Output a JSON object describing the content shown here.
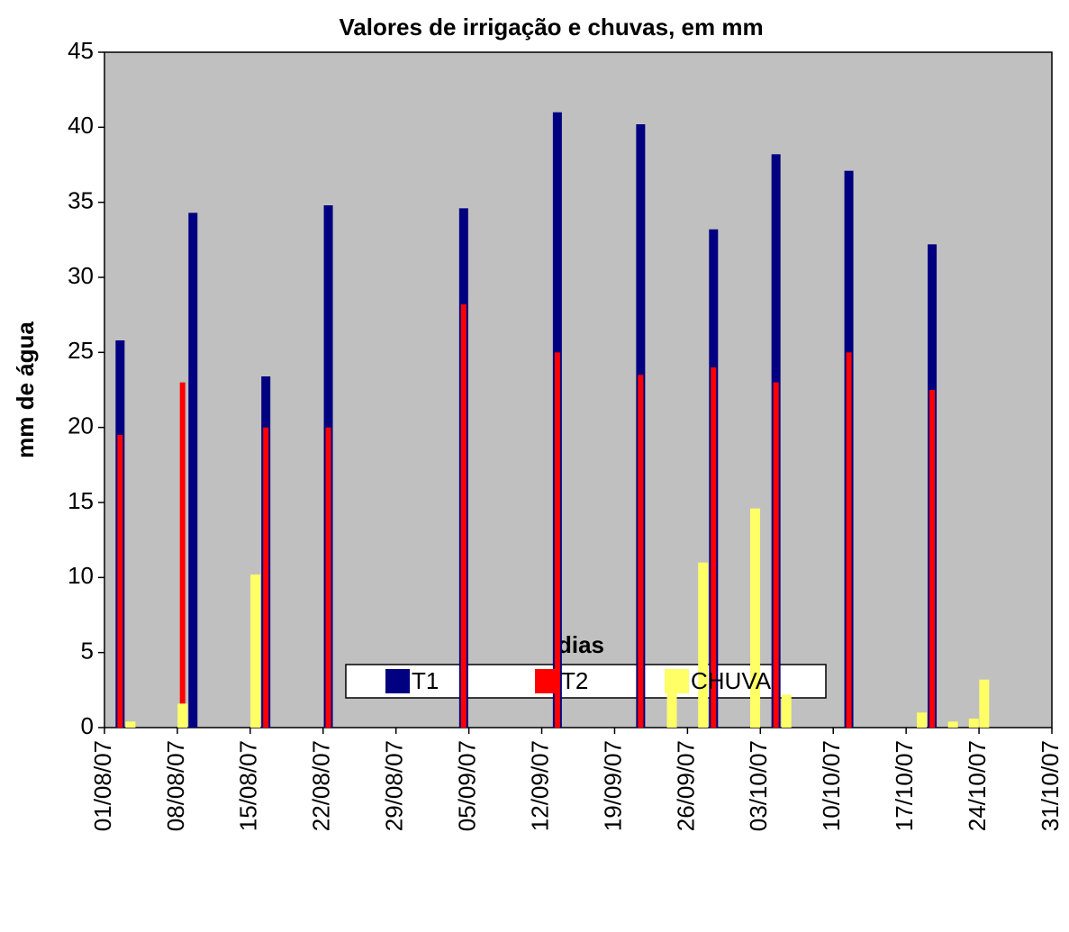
{
  "chart_data": {
    "type": "bar",
    "title": "Valores de irrigação e chuvas, em mm",
    "x_label": "dias",
    "y_label": "mm de água",
    "xlim": [
      "01/08/07",
      "31/10/07"
    ],
    "xticks": [
      "01/08/07",
      "08/08/07",
      "15/08/07",
      "22/08/07",
      "29/08/07",
      "05/09/07",
      "12/09/07",
      "19/09/07",
      "26/09/07",
      "03/10/07",
      "10/10/07",
      "17/10/07",
      "24/10/07",
      "31/10/07"
    ],
    "ylim": [
      0,
      45
    ],
    "yticks": [
      0,
      5,
      10,
      15,
      20,
      25,
      30,
      35,
      40,
      45
    ],
    "grid": false,
    "legend": "bottom",
    "series": [
      {
        "name": "T1",
        "color": "#000080",
        "x": [
          "02/08/07",
          "09/08/07",
          "16/08/07",
          "22/08/07",
          "04/09/07",
          "13/09/07",
          "21/09/07",
          "28/09/07",
          "04/10/07",
          "11/10/07",
          "19/10/07"
        ],
        "values": [
          25.8,
          34.3,
          23.4,
          34.8,
          34.6,
          41.0,
          40.2,
          33.2,
          38.2,
          37.1,
          32.2
        ]
      },
      {
        "name": "T2",
        "color": "#ff0000",
        "x": [
          "02/08/07",
          "08/08/07",
          "16/08/07",
          "22/08/07",
          "04/09/07",
          "13/09/07",
          "21/09/07",
          "28/09/07",
          "04/10/07",
          "11/10/07",
          "19/10/07"
        ],
        "values": [
          19.5,
          23.0,
          20.0,
          20.0,
          28.2,
          25.0,
          23.5,
          24.0,
          23.0,
          25.0,
          22.5
        ]
      },
      {
        "name": "CHUVA",
        "color": "#ffff66",
        "x": [
          "03/08/07",
          "08/08/07",
          "15/08/07",
          "24/09/07",
          "27/09/07",
          "02/10/07",
          "05/10/07",
          "18/10/07",
          "21/10/07",
          "23/10/07",
          "24/10/07"
        ],
        "values": [
          0.4,
          1.6,
          10.2,
          2.4,
          11.0,
          14.6,
          2.2,
          1.0,
          0.4,
          0.6,
          3.2
        ]
      }
    ]
  }
}
